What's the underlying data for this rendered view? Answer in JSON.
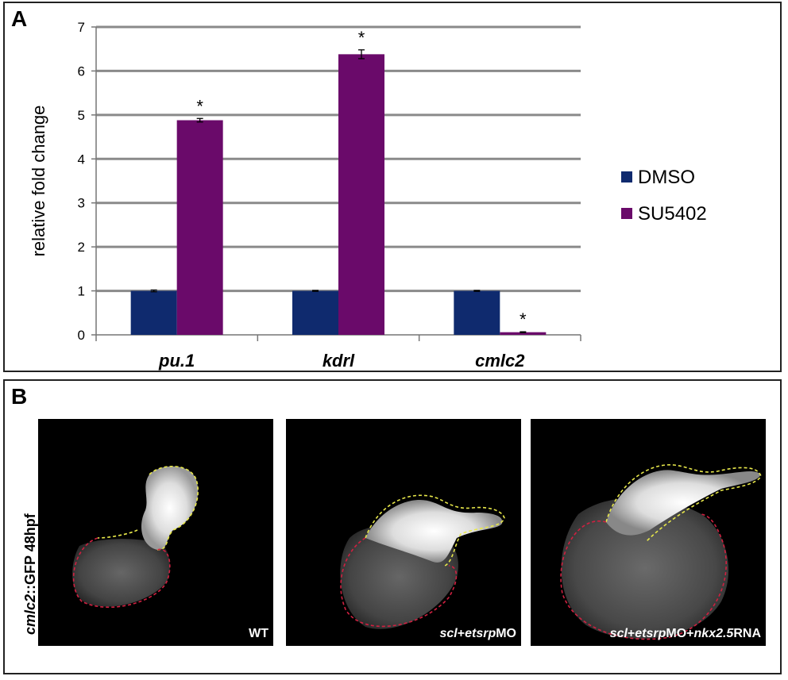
{
  "panelA": {
    "letter": "A",
    "chart_data": {
      "type": "bar",
      "categories": [
        "pu.1",
        "kdrl",
        "cmlc2"
      ],
      "series": [
        {
          "name": "DMSO",
          "values": [
            1.0,
            1.0,
            1.0
          ],
          "errors": [
            0.02,
            0.01,
            0.01
          ],
          "color": "#0f2a6e"
        },
        {
          "name": "SU5402",
          "values": [
            4.88,
            6.38,
            0.06
          ],
          "errors": [
            0.04,
            0.1,
            0.01
          ],
          "color": "#6a0a6a"
        }
      ],
      "significance": [
        "*",
        "*",
        "*"
      ],
      "ylabel": "relative fold change",
      "xlabel": "",
      "ylim": [
        0,
        7
      ],
      "yticks": [
        "0",
        "1",
        "2",
        "3",
        "4",
        "5",
        "6",
        "7"
      ],
      "grid": true,
      "legend": "right"
    }
  },
  "panelB": {
    "letter": "B",
    "side_label": {
      "italic": "cmlc2",
      "rest": "::GFP 48hpf"
    },
    "images": [
      {
        "label_parts": [
          {
            "t": "WT",
            "i": false
          }
        ]
      },
      {
        "label_parts": [
          {
            "t": "scl",
            "i": true
          },
          {
            "t": "+",
            "i": false
          },
          {
            "t": "etsrp",
            "i": true
          },
          {
            "t": "MO",
            "i": false
          }
        ]
      },
      {
        "label_parts": [
          {
            "t": "scl",
            "i": true
          },
          {
            "t": "+",
            "i": false
          },
          {
            "t": "etsrp",
            "i": true
          },
          {
            "t": "MO+",
            "i": false
          },
          {
            "t": "nkx2.5",
            "i": true
          },
          {
            "t": "RNA",
            "i": false
          }
        ]
      }
    ]
  }
}
